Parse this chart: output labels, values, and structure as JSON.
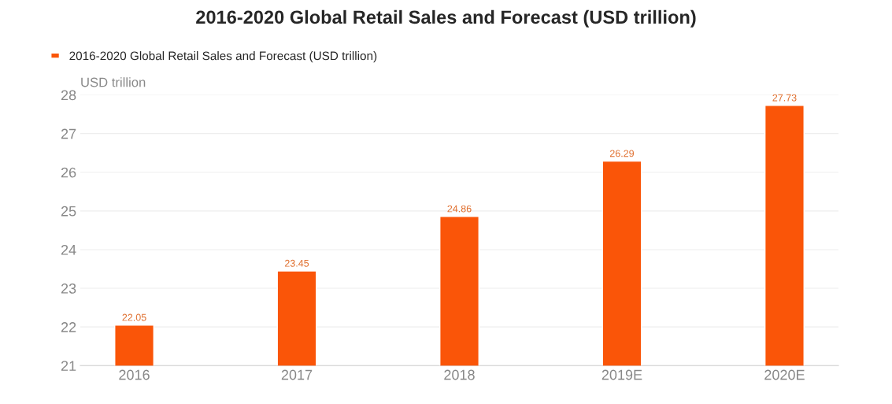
{
  "chart_data": {
    "type": "bar",
    "title": "2016-2020 Global Retail Sales and Forecast (USD trillion)",
    "ylabel": "USD trillion",
    "categories": [
      "2016",
      "2017",
      "2018",
      "2019E",
      "2020E"
    ],
    "series": [
      {
        "name": "2016-2020 Global Retail Sales and Forecast (USD trillion)",
        "color": "#fa5508",
        "values": [
          22.05,
          23.45,
          24.86,
          26.29,
          27.73
        ]
      }
    ],
    "ylim": [
      21,
      28
    ],
    "yticks": [
      21,
      22,
      23,
      24,
      25,
      26,
      27,
      28
    ],
    "grid": "y",
    "legend": "top left",
    "data_labels": true
  }
}
